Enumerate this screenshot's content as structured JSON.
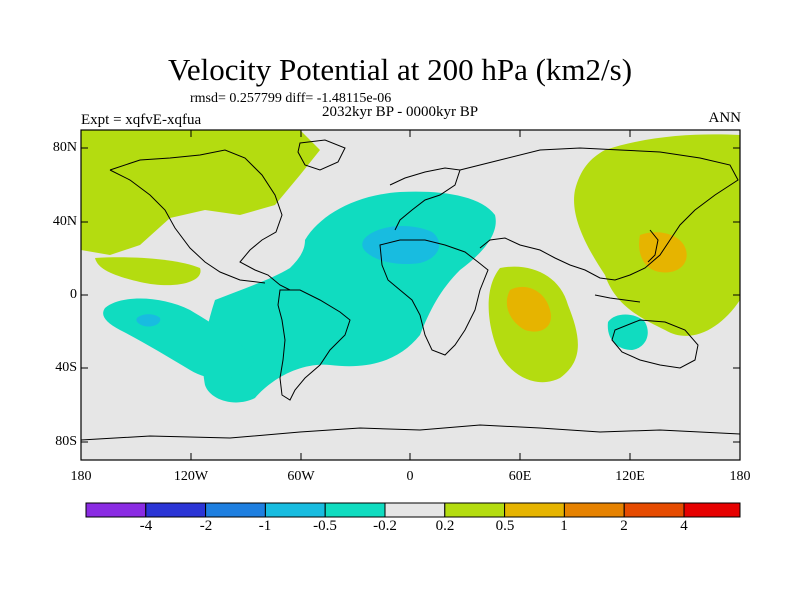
{
  "title": "Velocity Potential at 200 hPa (km2/s)",
  "stats_text": "rmsd= 0.257799 diff= -1.48115e-06",
  "experiment_text": "Expt = xqfvE-xqfua",
  "period_text": "2032kyr BP - 0000kyr BP",
  "season_text": "ANN",
  "lat_labels": [
    "80N",
    "40N",
    "0",
    "40S",
    "80S"
  ],
  "lon_labels": [
    "180",
    "120W",
    "60W",
    "0",
    "60E",
    "120E",
    "180"
  ],
  "colorbar": {
    "labels": [
      "-4",
      "-2",
      "-1",
      "-0.5",
      "-0.2",
      "0.2",
      "0.5",
      "1",
      "2",
      "4"
    ],
    "colors": [
      "#8a2be2",
      "#2b35d6",
      "#1e7fe0",
      "#18bce0",
      "#10dcc0",
      "#e6e6e6",
      "#b4dc10",
      "#e6b400",
      "#e68200",
      "#e64b00",
      "#e60000"
    ]
  },
  "field_colors": {
    "ocean_land_neutral": "#e6e6e6",
    "pos_0_2": "#b4dc10",
    "pos_0_5": "#e6b400",
    "neg_0_2": "#10dcc0",
    "neg_0_5": "#18bce0",
    "neg_1": "#1e7fe0"
  }
}
